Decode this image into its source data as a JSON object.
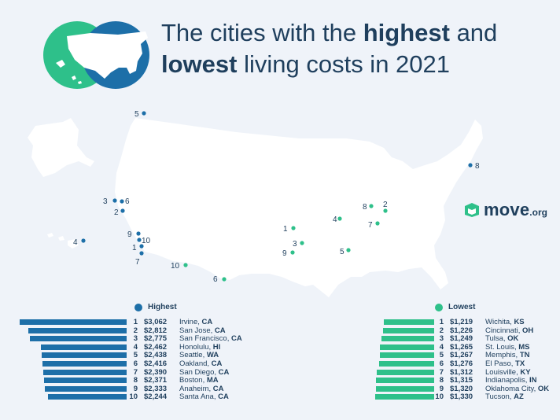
{
  "title": {
    "part1": "The cities with the ",
    "bold1": "highest",
    "part2": " and",
    "bold2": "lowest",
    "part3": " living costs in 2021"
  },
  "brand": {
    "name": "move",
    "suffix": ".org"
  },
  "colors": {
    "highest": "#1d6fa8",
    "lowest": "#2ec08a",
    "land": "#ffffff",
    "text": "#1f3f5d",
    "background": "#eff3f9"
  },
  "chart_data": [
    {
      "type": "bar",
      "title": "Highest",
      "series": [
        {
          "name": "Highest",
          "values": [
            3062,
            2812,
            2775,
            2462,
            2438,
            2416,
            2390,
            2371,
            2333,
            2244
          ]
        }
      ],
      "rows": [
        {
          "rank": "1",
          "cost": "$3,062",
          "city": "Irvine,",
          "state": "CA"
        },
        {
          "rank": "2",
          "cost": "$2,812",
          "city": "San Jose,",
          "state": "CA"
        },
        {
          "rank": "3",
          "cost": "$2,775",
          "city": "San Francisco,",
          "state": "CA"
        },
        {
          "rank": "4",
          "cost": "$2,462",
          "city": "Honolulu,",
          "state": "HI"
        },
        {
          "rank": "5",
          "cost": "$2,438",
          "city": "Seattle,",
          "state": "WA"
        },
        {
          "rank": "6",
          "cost": "$2,416",
          "city": "Oakland,",
          "state": "CA"
        },
        {
          "rank": "7",
          "cost": "$2,390",
          "city": "San Diego,",
          "state": "CA"
        },
        {
          "rank": "8",
          "cost": "$2,371",
          "city": "Boston,",
          "state": "MA"
        },
        {
          "rank": "9",
          "cost": "$2,333",
          "city": "Anaheim,",
          "state": "CA"
        },
        {
          "rank": "10",
          "cost": "$2,244",
          "city": "Santa Ana,",
          "state": "CA"
        }
      ]
    },
    {
      "type": "bar",
      "title": "Lowest",
      "series": [
        {
          "name": "Lowest",
          "values": [
            1219,
            1226,
            1249,
            1265,
            1267,
            1276,
            1312,
            1315,
            1320,
            1330
          ]
        }
      ],
      "rows": [
        {
          "rank": "1",
          "cost": "$1,219",
          "city": "Wichita,",
          "state": "KS"
        },
        {
          "rank": "2",
          "cost": "$1,226",
          "city": "Cincinnati,",
          "state": "OH"
        },
        {
          "rank": "3",
          "cost": "$1,249",
          "city": "Tulsa,",
          "state": "OK"
        },
        {
          "rank": "4",
          "cost": "$1,265",
          "city": "St. Louis,",
          "state": "MS"
        },
        {
          "rank": "5",
          "cost": "$1,267",
          "city": "Memphis,",
          "state": "TN"
        },
        {
          "rank": "6",
          "cost": "$1,276",
          "city": "El Paso,",
          "state": "TX"
        },
        {
          "rank": "7",
          "cost": "$1,312",
          "city": "Louisville,",
          "state": "KY"
        },
        {
          "rank": "8",
          "cost": "$1,315",
          "city": "Indianapolis,",
          "state": "IN"
        },
        {
          "rank": "9",
          "cost": "$1,320",
          "city": "Oklahoma City,",
          "state": "OK"
        },
        {
          "rank": "10",
          "cost": "$1,330",
          "city": "Tucson,",
          "state": "AZ"
        }
      ]
    }
  ],
  "map_markers": {
    "highest": [
      "1",
      "2",
      "3",
      "4",
      "5",
      "6",
      "7",
      "8",
      "9",
      "10"
    ],
    "lowest": [
      "1",
      "2",
      "3",
      "4",
      "5",
      "6",
      "7",
      "8",
      "9",
      "10"
    ]
  }
}
